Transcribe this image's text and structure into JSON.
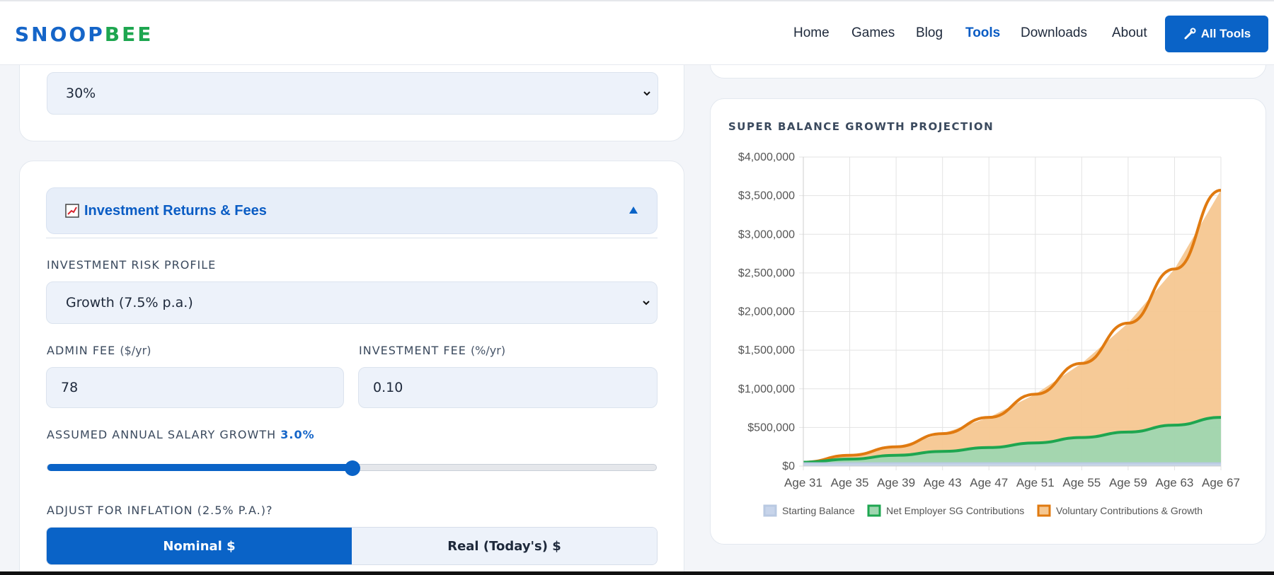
{
  "header": {
    "logo_part1": "SNOOP",
    "logo_part2": "BEE",
    "nav": [
      "Home",
      "Games",
      "Blog",
      "Tools",
      "Downloads",
      "About"
    ],
    "active_nav": "Tools",
    "all_tools_label": "All Tools",
    "all_tools_icon": "wrench-icon"
  },
  "form": {
    "tax_select_value": "30%",
    "section_title": "Investment Returns & Fees",
    "section_icon": "chart-icon",
    "risk_profile_label": "INVESTMENT RISK PROFILE",
    "risk_profile_value": "Growth (7.5% p.a.)",
    "admin_fee_label": "ADMIN FEE",
    "admin_fee_unit": "($/yr)",
    "admin_fee_value": "78",
    "investment_fee_label": "INVESTMENT FEE",
    "investment_fee_unit": "(%/yr)",
    "investment_fee_value": "0.10",
    "salary_growth_label": "ASSUMED ANNUAL SALARY GROWTH",
    "salary_growth_value": "3.0%",
    "salary_growth_slider_fraction": 0.5,
    "inflation_label": "ADJUST FOR INFLATION (2.5% P.A.)?",
    "toggle_nominal": "Nominal $",
    "toggle_real": "Real (Today's) $",
    "toggle_selected": "Nominal $"
  },
  "chart_data": {
    "type": "area",
    "title": "SUPER BALANCE GROWTH PROJECTION",
    "x_ticks": [
      "Age 31",
      "Age 35",
      "Age 39",
      "Age 43",
      "Age 47",
      "Age 51",
      "Age 55",
      "Age 59",
      "Age 63",
      "Age 67"
    ],
    "y_ticks": [
      "$0",
      "$500,000",
      "$1,000,000",
      "$1,500,000",
      "$2,000,000",
      "$2,500,000",
      "$3,000,000",
      "$3,500,000",
      "$4,000,000"
    ],
    "xlim": [
      31,
      67
    ],
    "ylim": [
      0,
      4000000
    ],
    "grid": true,
    "legend_position": "bottom",
    "x": [
      31,
      35,
      39,
      43,
      47,
      51,
      55,
      59,
      63,
      67
    ],
    "series": [
      {
        "name": "Starting Balance",
        "color": "#b9c9e2",
        "values": [
          40000,
          40000,
          40000,
          40000,
          40000,
          40000,
          40000,
          40000,
          40000,
          40000
        ]
      },
      {
        "name": "Net Employer SG Contributions",
        "color": "#1ea650",
        "values": [
          50000,
          90000,
          140000,
          190000,
          240000,
          300000,
          370000,
          440000,
          530000,
          630000
        ]
      },
      {
        "name": "Voluntary Contributions & Growth",
        "color": "#e07a10",
        "values": [
          50000,
          140000,
          250000,
          420000,
          630000,
          930000,
          1330000,
          1850000,
          2550000,
          3570000
        ]
      }
    ]
  }
}
